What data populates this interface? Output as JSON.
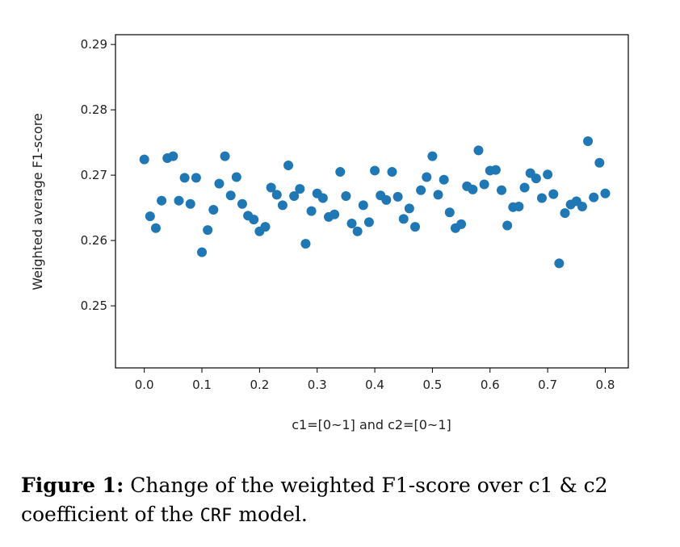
{
  "chart_data": {
    "type": "scatter",
    "xlabel": "c1=[0~1] and c2=[0~1]",
    "ylabel": "Weighted average F1-score",
    "xlim": [
      -0.05,
      0.84
    ],
    "ylim": [
      0.2405,
      0.2915
    ],
    "xticks": [
      "0.0",
      "0.1",
      "0.2",
      "0.3",
      "0.4",
      "0.5",
      "0.6",
      "0.7",
      "0.8"
    ],
    "yticks": [
      "0.25",
      "0.26",
      "0.27",
      "0.28",
      "0.29"
    ],
    "grid": false,
    "marker_color": "#1f77b4",
    "x": [
      0.0,
      0.01,
      0.02,
      0.03,
      0.04,
      0.05,
      0.06,
      0.07,
      0.08,
      0.09,
      0.1,
      0.11,
      0.12,
      0.13,
      0.14,
      0.15,
      0.16,
      0.17,
      0.18,
      0.19,
      0.2,
      0.21,
      0.22,
      0.23,
      0.24,
      0.25,
      0.26,
      0.27,
      0.28,
      0.29,
      0.3,
      0.31,
      0.32,
      0.33,
      0.34,
      0.35,
      0.36,
      0.37,
      0.38,
      0.39,
      0.4,
      0.41,
      0.42,
      0.43,
      0.44,
      0.45,
      0.46,
      0.47,
      0.48,
      0.49,
      0.5,
      0.51,
      0.52,
      0.53,
      0.54,
      0.55,
      0.56,
      0.57,
      0.58,
      0.59,
      0.6,
      0.61,
      0.62,
      0.63,
      0.64,
      0.65,
      0.66,
      0.67,
      0.68,
      0.69,
      0.7,
      0.71,
      0.72,
      0.73,
      0.74,
      0.75,
      0.76,
      0.77,
      0.78,
      0.79,
      0.8
    ],
    "y": [
      0.2724,
      0.2637,
      0.2619,
      0.2661,
      0.2726,
      0.2729,
      0.2661,
      0.2696,
      0.2656,
      0.2696,
      0.2582,
      0.2616,
      0.2647,
      0.2687,
      0.2729,
      0.2669,
      0.2697,
      0.2656,
      0.2638,
      0.2632,
      0.2614,
      0.2621,
      0.2681,
      0.267,
      0.2654,
      0.2715,
      0.2668,
      0.2679,
      0.2595,
      0.2645,
      0.2672,
      0.2665,
      0.2636,
      0.264,
      0.2705,
      0.2668,
      0.2626,
      0.2614,
      0.2654,
      0.2628,
      0.2707,
      0.2669,
      0.2662,
      0.2705,
      0.2667,
      0.2633,
      0.2649,
      0.2621,
      0.2677,
      0.2697,
      0.2729,
      0.267,
      0.2693,
      0.2643,
      0.2619,
      0.2625,
      0.2683,
      0.2678,
      0.2738,
      0.2686,
      0.2707,
      0.2708,
      0.2677,
      0.2623,
      0.2651,
      0.2652,
      0.2681,
      0.2703,
      0.2695,
      0.2665,
      0.2701,
      0.2671,
      0.2565,
      0.2642,
      0.2655,
      0.266,
      0.2652,
      0.2752,
      0.2666,
      0.2719,
      0.2672
    ]
  },
  "caption": {
    "label": "Figure 1:",
    "text_before": " Change of the weighted F1-score over c1 & c2 coefficient of the ",
    "model_name": "CRF",
    "text_after": " model."
  }
}
